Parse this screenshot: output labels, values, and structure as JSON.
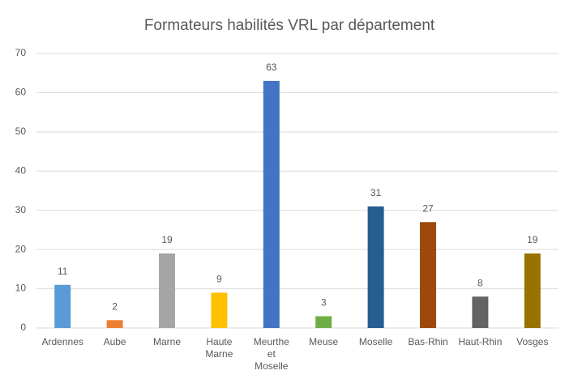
{
  "chart_data": {
    "type": "bar",
    "title": "Formateurs habilités VRL par département",
    "categories": [
      "Ardennes",
      "Aube",
      "Marne",
      "Haute Marne",
      "Meurthe et Moselle",
      "Meuse",
      "Moselle",
      "Bas-Rhin",
      "Haut-Rhin",
      "Vosges"
    ],
    "values": [
      11,
      2,
      19,
      9,
      63,
      3,
      31,
      27,
      8,
      19
    ],
    "colors": [
      "#5b9bd5",
      "#ed7d31",
      "#a5a5a5",
      "#ffc000",
      "#4472c4",
      "#70ad47",
      "#255e91",
      "#9e480e",
      "#636363",
      "#997300"
    ],
    "ylim": [
      0,
      70
    ],
    "yticks": [
      0,
      10,
      20,
      30,
      40,
      50,
      60,
      70
    ],
    "grid": true
  }
}
